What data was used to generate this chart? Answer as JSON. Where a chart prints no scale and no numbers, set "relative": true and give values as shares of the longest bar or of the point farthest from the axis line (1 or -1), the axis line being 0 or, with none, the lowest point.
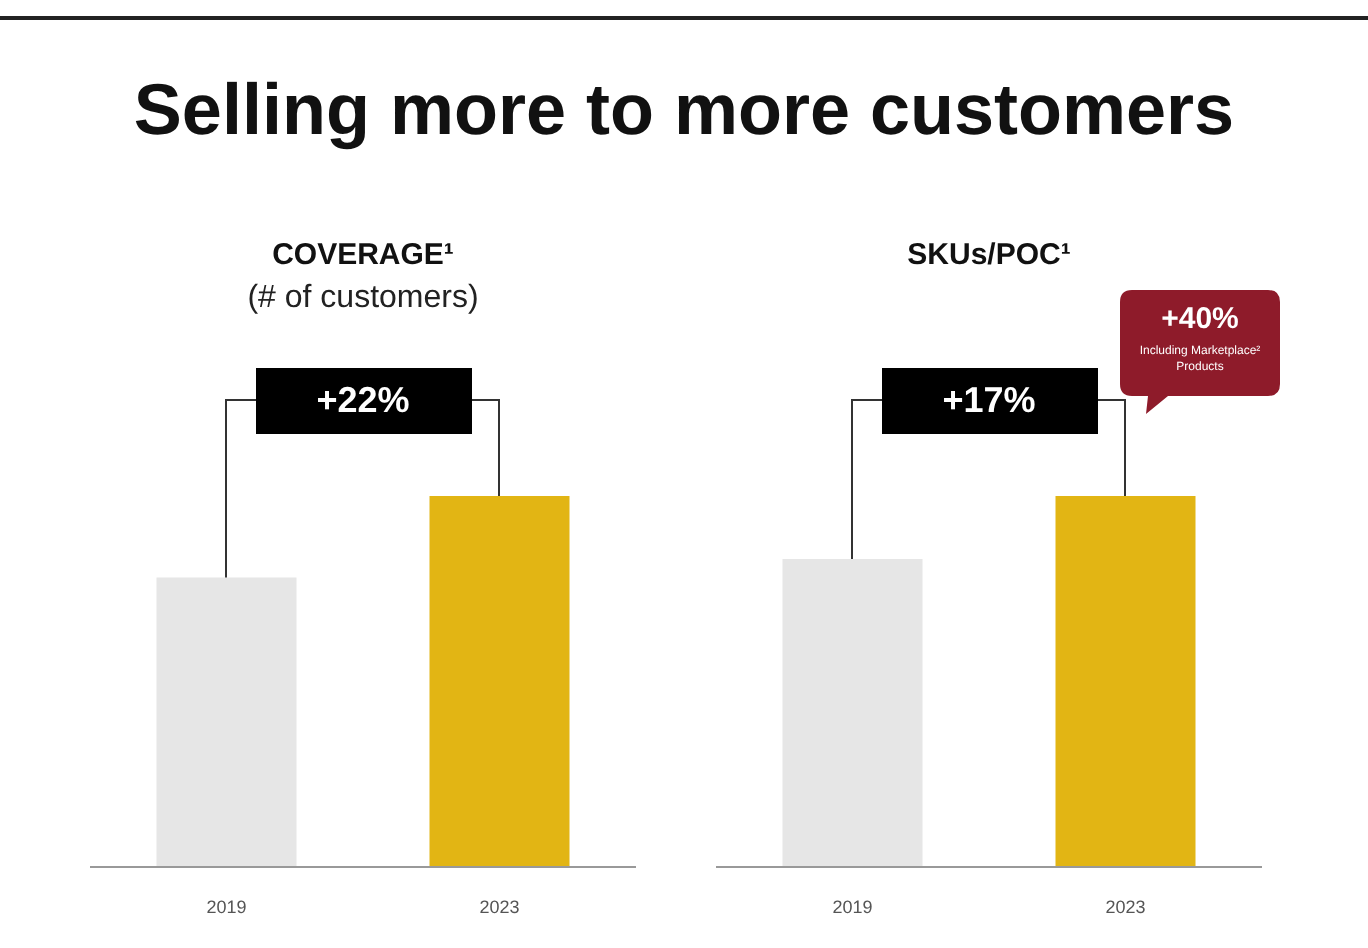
{
  "chart_data": [
    {
      "type": "bar",
      "title": "COVERAGE¹",
      "subtitle": "(# of customers)",
      "categories": [
        "2019",
        "2023"
      ],
      "values": [
        0.78,
        1
      ],
      "colors": [
        "#e6e6e6",
        "#e2b514"
      ],
      "relative": true,
      "annotations": [
        "Selling more to more customers",
        "+22%"
      ]
    },
    {
      "type": "bar",
      "title": "SKUs/POC¹",
      "categories": [
        "2019",
        "2023"
      ],
      "values": [
        0.83,
        1
      ],
      "colors": [
        "#e6e6e6",
        "#e2b514"
      ],
      "relative": true,
      "annotations": [
        "+17%",
        "+40%",
        "Including Marketplace² Products"
      ]
    }
  ]
}
